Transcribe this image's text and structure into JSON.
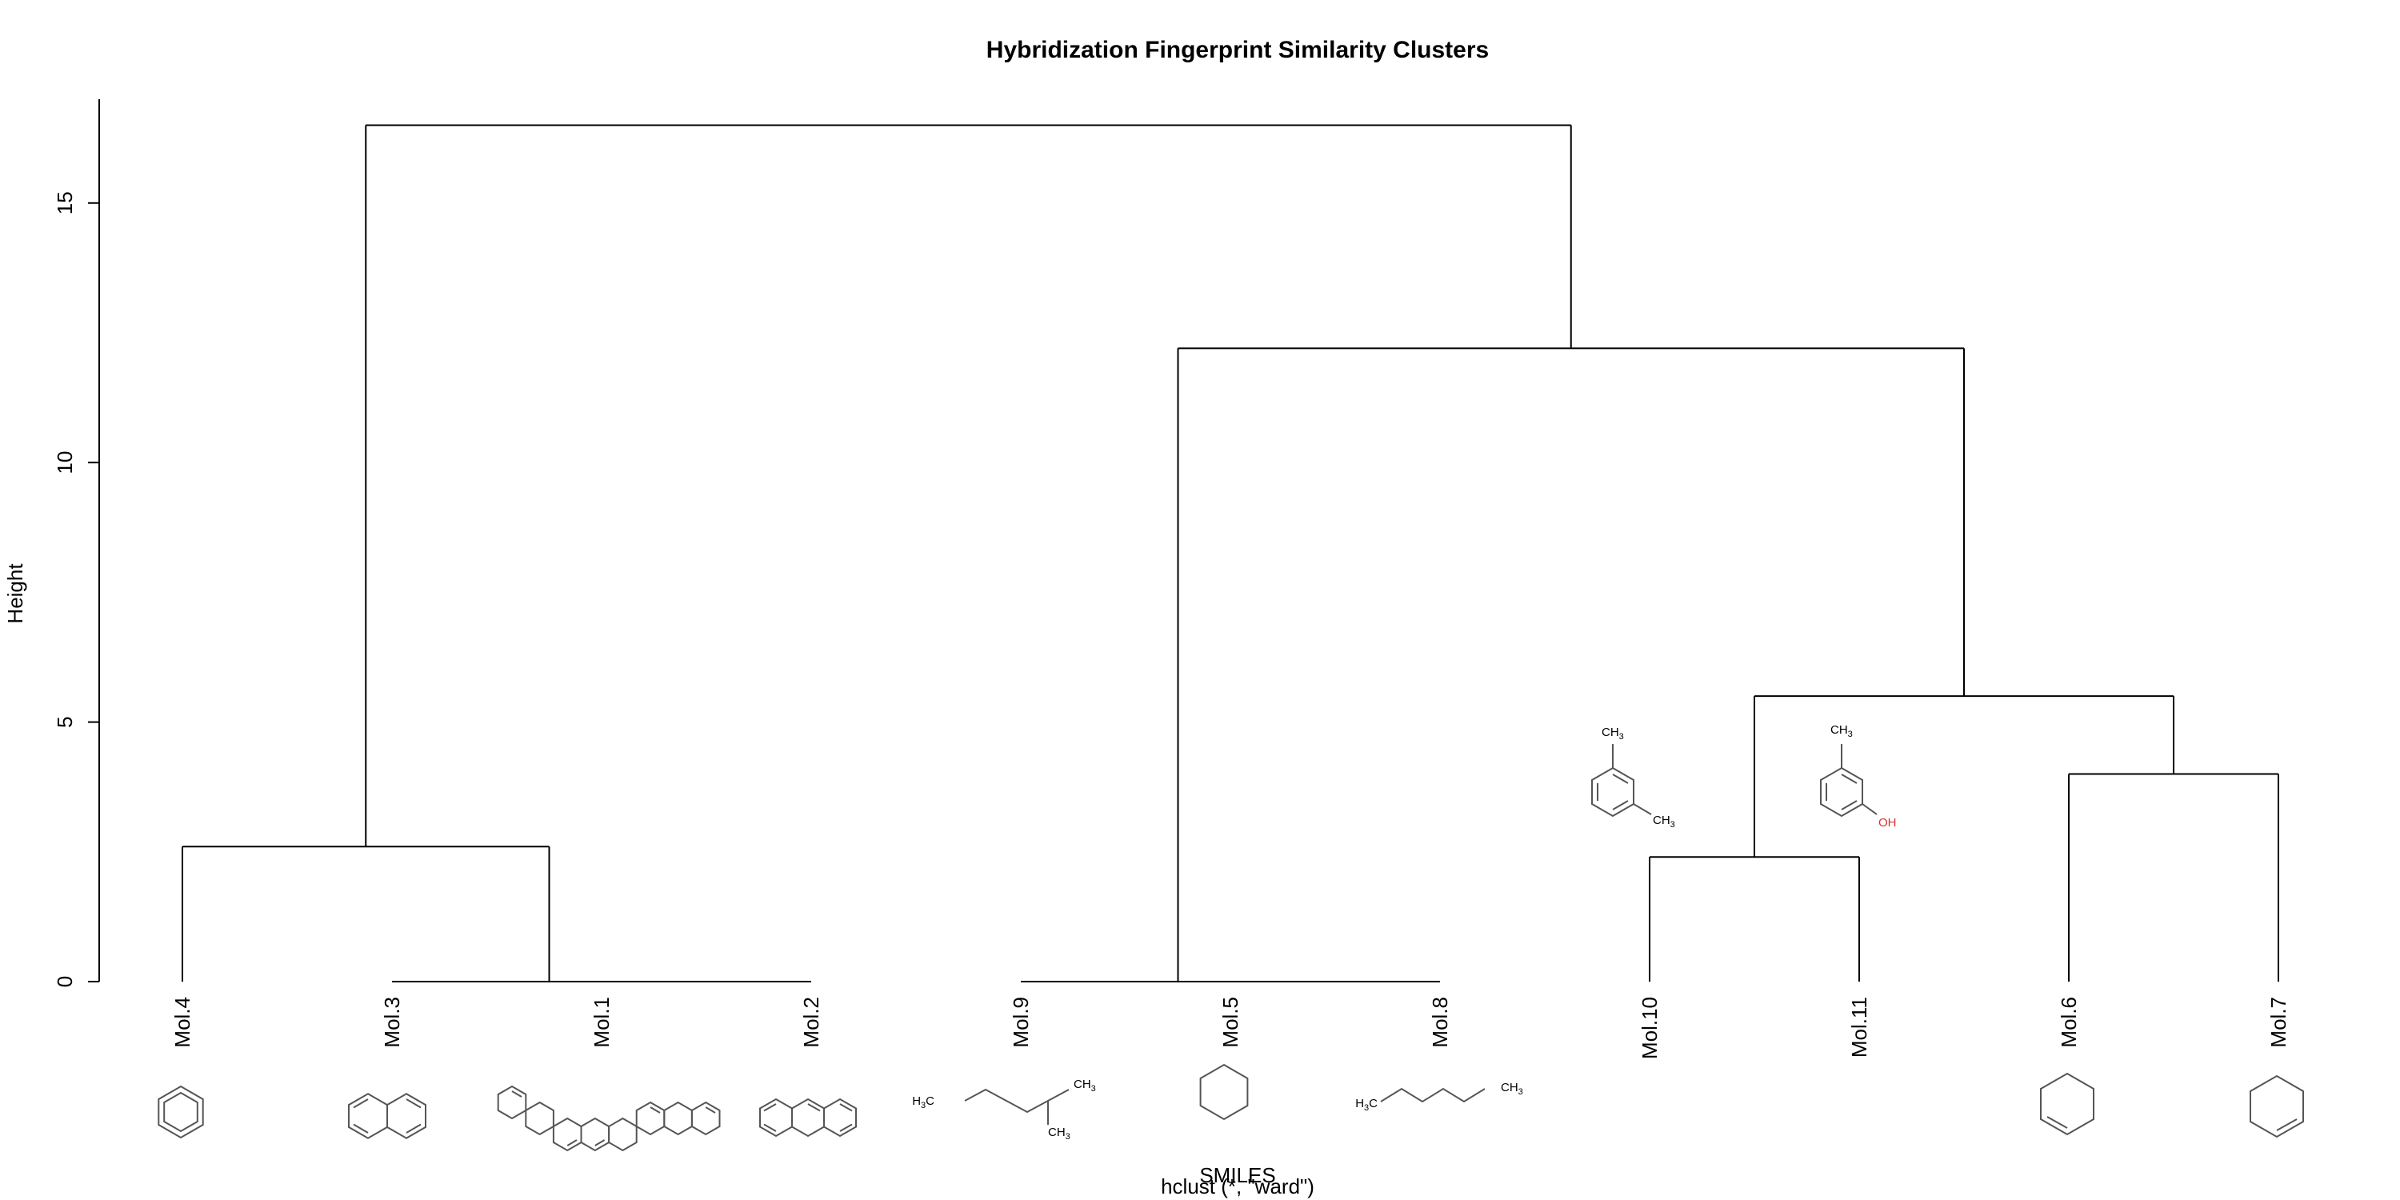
{
  "chart_data": {
    "type": "dendrogram",
    "title": "Hybridization Fingerprint Similarity Clusters",
    "ylabel": "Height",
    "xlabel": "SMILES",
    "subtitle": "hclust (*, \"ward\")",
    "ylim": [
      0,
      17
    ],
    "yticks": [
      "0",
      "5",
      "10",
      "15"
    ],
    "yticks_values": [
      0,
      5,
      10,
      15
    ],
    "leaves": [
      "Mol.4",
      "Mol.3",
      "Mol.1",
      "Mol.2",
      "Mol.9",
      "Mol.5",
      "Mol.8",
      "Mol.10",
      "Mol.11",
      "Mol.6",
      "Mol.7"
    ],
    "merges": [
      {
        "left": "Mol.1",
        "right": "Mol.2",
        "height": 0
      },
      {
        "left": "Mol.3",
        "right": "Mol.1+Mol.2",
        "height": 0
      },
      {
        "left": "Mol.4",
        "right": "Mol.3+Mol.1+Mol.2",
        "height": 2.6
      },
      {
        "left": "Mol.5",
        "right": "Mol.8",
        "height": 0
      },
      {
        "left": "Mol.9",
        "right": "Mol.5+Mol.8",
        "height": 0
      },
      {
        "left": "Mol.10",
        "right": "Mol.11",
        "height": 2.4
      },
      {
        "left": "Mol.6",
        "right": "Mol.7",
        "height": 4.0
      },
      {
        "left": "Mol.10+Mol.11",
        "right": "Mol.6+Mol.7",
        "height": 5.5
      },
      {
        "left": "Mol.9+Mol.5+Mol.8",
        "right": "Mol.10+Mol.11+Mol.6+Mol.7",
        "height": 12.2
      },
      {
        "left": "Mol.4+Mol.3+Mol.1+Mol.2",
        "right": "Mol.9+Mol.5+Mol.8+Mol.10+Mol.11+Mol.6+Mol.7",
        "height": 16.5
      }
    ],
    "structure_labels": {
      "ch3": "CH",
      "h3c": "H",
      "sub3": "3",
      "c": "C",
      "oh": "OH"
    }
  }
}
